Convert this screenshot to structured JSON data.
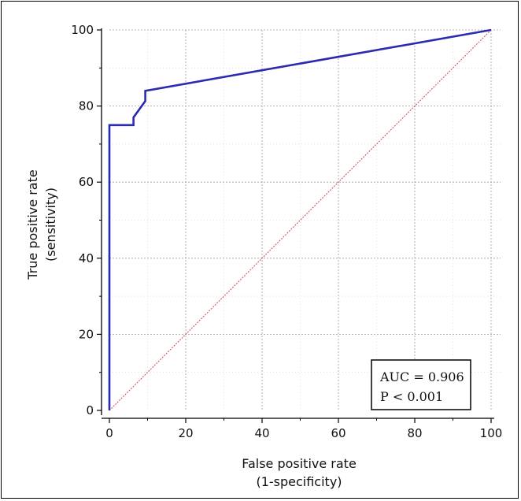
{
  "chart_data": {
    "type": "line",
    "xlabel": [
      "False positive rate",
      "(1-specificity)"
    ],
    "ylabel": [
      "True positive rate",
      "(sensitivity)"
    ],
    "xlim": [
      0,
      100
    ],
    "ylim": [
      0,
      100
    ],
    "xticks": [
      0,
      20,
      40,
      60,
      80,
      100
    ],
    "yticks": [
      0,
      20,
      40,
      60,
      80,
      100
    ],
    "grid": true,
    "series": [
      {
        "role": "roc",
        "color": "#2b2bb0",
        "x": [
          0,
          0,
          6.3,
          6.3,
          9.4,
          9.4,
          100
        ],
        "y": [
          0,
          75,
          75,
          77,
          81.3,
          84,
          100
        ]
      },
      {
        "role": "reference",
        "color": "#c84a4a",
        "dashed": true,
        "x": [
          0,
          100
        ],
        "y": [
          0,
          100
        ]
      }
    ],
    "annotation": [
      "AUC = 0.906",
      "P < 0.001"
    ]
  }
}
